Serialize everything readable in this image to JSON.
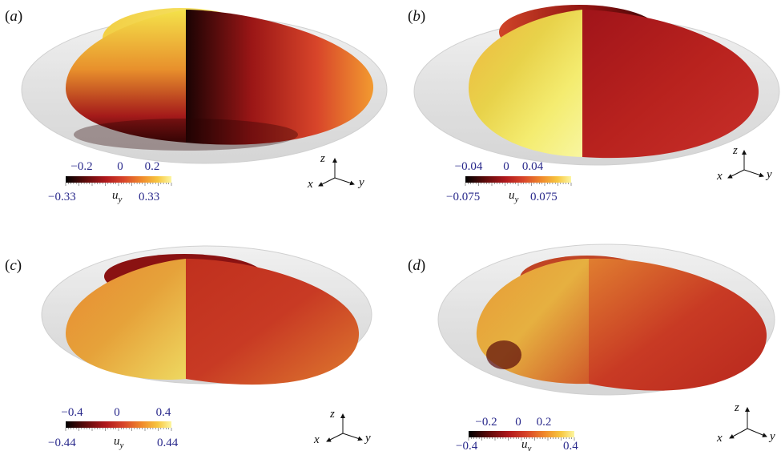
{
  "panels": [
    {
      "id": "a",
      "label_open": "(",
      "label_letter": "a",
      "label_close": ")",
      "colorbar": {
        "variable": "u",
        "subscript": "y",
        "top_ticks": [
          "−0.2",
          "0",
          "0.2"
        ],
        "bottom_min": "−0.33",
        "bottom_max": "0.33"
      },
      "axes": {
        "x": "x",
        "y": "y",
        "z": "z"
      }
    },
    {
      "id": "b",
      "label_open": "(",
      "label_letter": "b",
      "label_close": ")",
      "colorbar": {
        "variable": "u",
        "subscript": "y",
        "top_ticks": [
          "−0.04",
          "0",
          "0.04"
        ],
        "bottom_min": "−0.075",
        "bottom_max": "0.075"
      },
      "axes": {
        "x": "x",
        "y": "y",
        "z": "z"
      }
    },
    {
      "id": "c",
      "label_open": "(",
      "label_letter": "c",
      "label_close": ")",
      "colorbar": {
        "variable": "u",
        "subscript": "y",
        "top_ticks": [
          "−0.4",
          "0",
          "0.4"
        ],
        "bottom_min": "−0.44",
        "bottom_max": "0.44"
      },
      "axes": {
        "x": "x",
        "y": "y",
        "z": "z"
      }
    },
    {
      "id": "d",
      "label_open": "(",
      "label_letter": "d",
      "label_close": ")",
      "colorbar": {
        "variable": "u",
        "subscript": "y",
        "top_ticks": [
          "−0.2",
          "0",
          "0.2"
        ],
        "bottom_min": "−0.4",
        "bottom_max": "0.4"
      },
      "axes": {
        "x": "x",
        "y": "y",
        "z": "z"
      }
    }
  ],
  "colors": {
    "colormap": [
      "#000000",
      "#5a0a0a",
      "#b0181c",
      "#d8452a",
      "#f08a2c",
      "#f7c640",
      "#fdf6a0"
    ],
    "shell": "#d6d6d6",
    "tick_text": "#2a2a8c"
  }
}
